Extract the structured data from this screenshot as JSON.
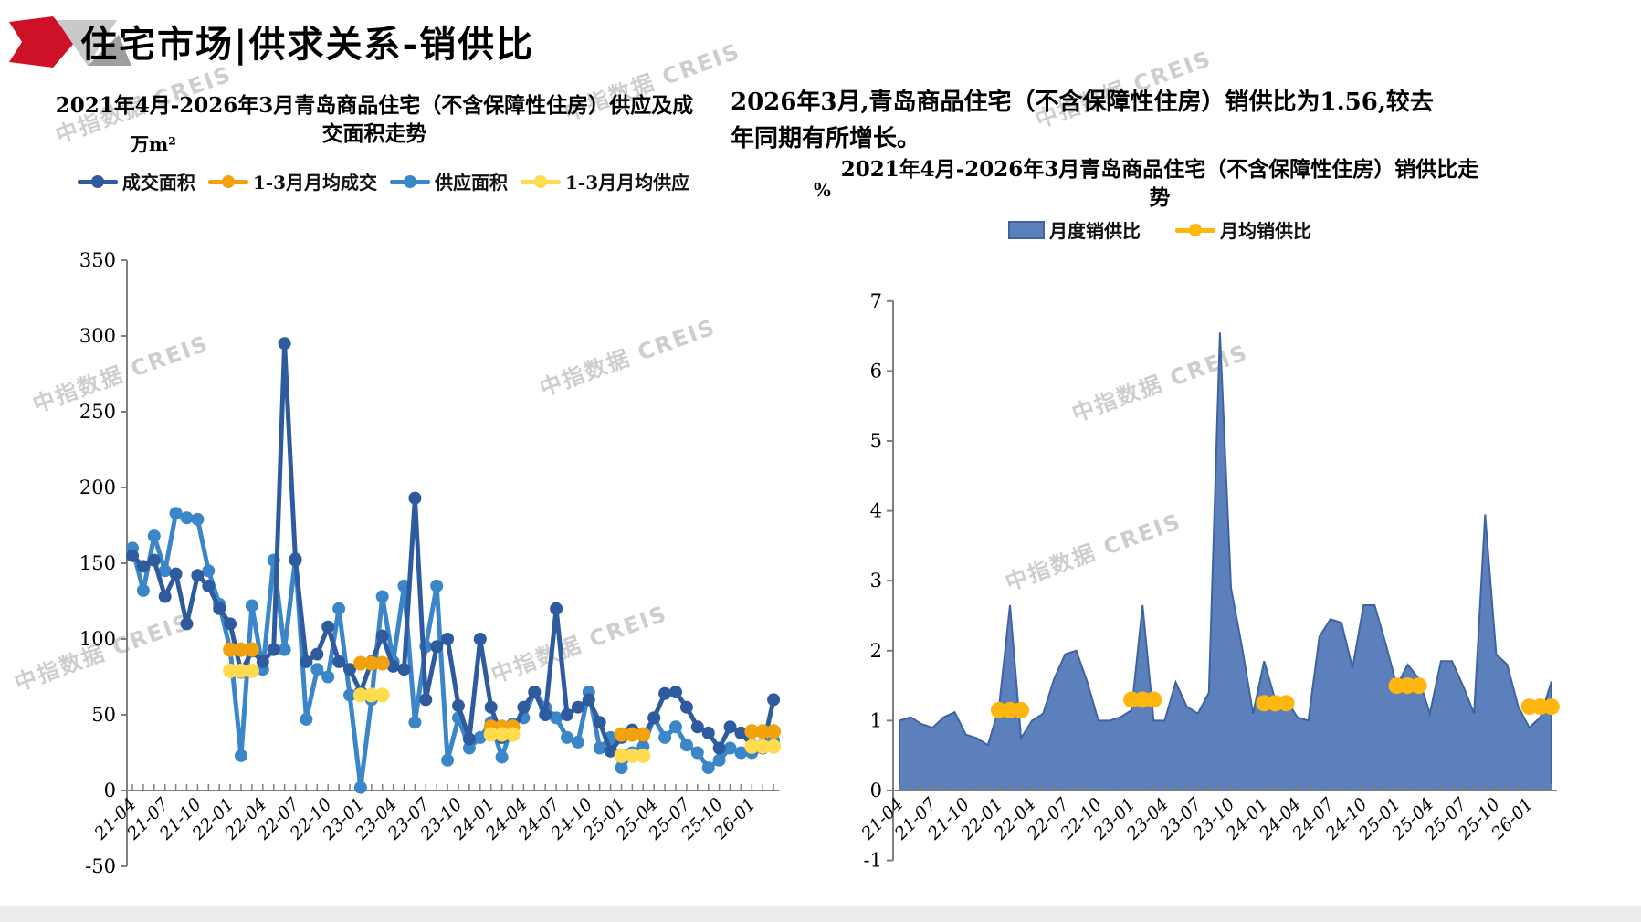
{
  "page": {
    "title": "住宅市场|供求关系-销供比"
  },
  "watermark": {
    "text": "中指数据 CREIS"
  },
  "left_panel": {
    "title_line1": "2021年4月-2026年3月青岛商品住宅（不含保障性住房）供应及成",
    "title_line2": "交面积走势",
    "unit": "万m²"
  },
  "right_panel": {
    "summary_line1": "2026年3月,青岛商品住宅（不含保障性住房）销供比为1.56,较去",
    "summary_line2": "年同期有所增长。",
    "title_line1": "2021年4月-2026年3月青岛商品住宅（不含保障性住房）销供比走",
    "title_line2": "势",
    "unit": "%"
  },
  "colors": {
    "logo_red": "#CE1126",
    "logo_gray_light": "#C9C9C9",
    "logo_gray_dark": "#9E9E9E",
    "transaction": "#2E5B9E",
    "transaction_mean": "#F2A20D",
    "supply": "#3B85C9",
    "supply_mean": "#FFDC4E",
    "ratio_fill": "#5C80BC",
    "ratio_stroke": "#3F639F",
    "ratio_mean": "#FFB70F",
    "axis": "#7F7F7F",
    "watermark": "#C6C6C6"
  },
  "chart_data": [
    {
      "type": "line",
      "title": "2021年4月-2026年3月青岛商品住宅（不含保障性住房）供应及成交面积走势",
      "ylabel": "万m²",
      "ylim": [
        -50,
        350
      ],
      "ytick_step": 50,
      "grid": false,
      "legend_position": "top",
      "xtick_every": 3,
      "x": [
        "21-04",
        "21-05",
        "21-06",
        "21-07",
        "21-08",
        "21-09",
        "21-10",
        "21-11",
        "21-12",
        "22-01",
        "22-02",
        "22-03",
        "22-04",
        "22-05",
        "22-06",
        "22-07",
        "22-08",
        "22-09",
        "22-10",
        "22-11",
        "22-12",
        "23-01",
        "23-02",
        "23-03",
        "23-04",
        "23-05",
        "23-06",
        "23-07",
        "23-08",
        "23-09",
        "23-10",
        "23-11",
        "23-12",
        "24-01",
        "24-02",
        "24-03",
        "24-04",
        "24-05",
        "24-06",
        "24-07",
        "24-08",
        "24-09",
        "24-10",
        "24-11",
        "24-12",
        "25-01",
        "25-02",
        "25-03",
        "25-04",
        "25-05",
        "25-06",
        "25-07",
        "25-08",
        "25-09",
        "25-10",
        "25-11",
        "25-12",
        "26-01",
        "26-02",
        "26-03"
      ],
      "series": [
        {
          "name": "成交面积",
          "color": "#2E5B9E",
          "values": [
            155,
            148,
            152,
            128,
            143,
            110,
            142,
            135,
            120,
            110,
            78,
            92,
            85,
            93,
            295,
            152,
            85,
            90,
            108,
            85,
            80,
            65,
            85,
            102,
            82,
            80,
            193,
            60,
            95,
            100,
            56,
            34,
            100,
            55,
            35,
            38,
            55,
            65,
            50,
            120,
            50,
            55,
            60,
            45,
            26,
            35,
            40,
            36,
            48,
            64,
            65,
            55,
            42,
            38,
            28,
            42,
            38,
            30,
            28,
            60
          ]
        },
        {
          "name": "供应面积",
          "color": "#3B85C9",
          "values": [
            160,
            132,
            168,
            145,
            183,
            180,
            179,
            145,
            123,
            93,
            23,
            122,
            80,
            152,
            93,
            153,
            47,
            80,
            75,
            120,
            63,
            2,
            60,
            128,
            85,
            135,
            45,
            95,
            135,
            20,
            48,
            28,
            35,
            45,
            22,
            44,
            48,
            65,
            55,
            48,
            35,
            32,
            65,
            28,
            35,
            15,
            25,
            29,
            48,
            35,
            42,
            30,
            25,
            15,
            20,
            28,
            25,
            25,
            30,
            33
          ]
        }
      ],
      "mean_series": [
        {
          "name": "1-3月月均成交",
          "color": "#F2A20D",
          "groups": [
            {
              "start": "22-01",
              "value": 93
            },
            {
              "start": "23-01",
              "value": 84
            },
            {
              "start": "24-01",
              "value": 42
            },
            {
              "start": "25-01",
              "value": 37
            },
            {
              "start": "26-01",
              "value": 39
            }
          ]
        },
        {
          "name": "1-3月月均供应",
          "color": "#FFDC4E",
          "groups": [
            {
              "start": "22-01",
              "value": 79
            },
            {
              "start": "23-01",
              "value": 63
            },
            {
              "start": "24-01",
              "value": 37
            },
            {
              "start": "25-01",
              "value": 23
            },
            {
              "start": "26-01",
              "value": 29
            }
          ]
        }
      ]
    },
    {
      "type": "area",
      "title": "2021年4月-2026年3月青岛商品住宅（不含保障性住房）销供比走势",
      "ylabel": "%",
      "ylim": [
        -1,
        7
      ],
      "ytick_step": 1,
      "grid": false,
      "legend_position": "top",
      "xtick_every": 3,
      "highlight_value_2026_03": 1.56,
      "x": [
        "21-04",
        "21-05",
        "21-06",
        "21-07",
        "21-08",
        "21-09",
        "21-10",
        "21-11",
        "21-12",
        "22-01",
        "22-02",
        "22-03",
        "22-04",
        "22-05",
        "22-06",
        "22-07",
        "22-08",
        "22-09",
        "22-10",
        "22-11",
        "22-12",
        "23-01",
        "23-02",
        "23-03",
        "23-04",
        "23-05",
        "23-06",
        "23-07",
        "23-08",
        "23-09",
        "23-10",
        "23-11",
        "23-12",
        "24-01",
        "24-02",
        "24-03",
        "24-04",
        "24-05",
        "24-06",
        "24-07",
        "24-08",
        "24-09",
        "24-10",
        "24-11",
        "24-12",
        "25-01",
        "25-02",
        "25-03",
        "25-04",
        "25-05",
        "25-06",
        "25-07",
        "25-08",
        "25-09",
        "25-10",
        "25-11",
        "25-12",
        "26-01",
        "26-02",
        "26-03"
      ],
      "series": [
        {
          "name": "月度销供比",
          "color_fill": "#5C80BC",
          "color_stroke": "#3F639F",
          "values": [
            1.0,
            1.05,
            0.95,
            0.9,
            1.05,
            1.12,
            0.8,
            0.75,
            0.65,
            1.18,
            2.65,
            0.75,
            1.0,
            1.1,
            1.6,
            1.95,
            2.0,
            1.55,
            1.0,
            1.0,
            1.05,
            1.15,
            2.65,
            1.0,
            1.0,
            1.55,
            1.2,
            1.1,
            1.4,
            6.55,
            2.9,
            2.05,
            1.1,
            1.85,
            1.3,
            1.3,
            1.05,
            1.0,
            2.2,
            2.45,
            2.4,
            1.75,
            2.65,
            2.65,
            2.1,
            1.5,
            1.8,
            1.6,
            1.1,
            1.85,
            1.85,
            1.5,
            1.1,
            3.95,
            1.95,
            1.8,
            1.2,
            0.9,
            1.05,
            1.56
          ]
        }
      ],
      "mean_series": [
        {
          "name": "月均销供比",
          "color": "#FFB70F",
          "groups": [
            {
              "start": "22-01",
              "value": 1.15
            },
            {
              "start": "23-01",
              "value": 1.3
            },
            {
              "start": "24-01",
              "value": 1.25
            },
            {
              "start": "25-01",
              "value": 1.5
            },
            {
              "start": "26-01",
              "value": 1.2
            }
          ]
        }
      ]
    }
  ]
}
